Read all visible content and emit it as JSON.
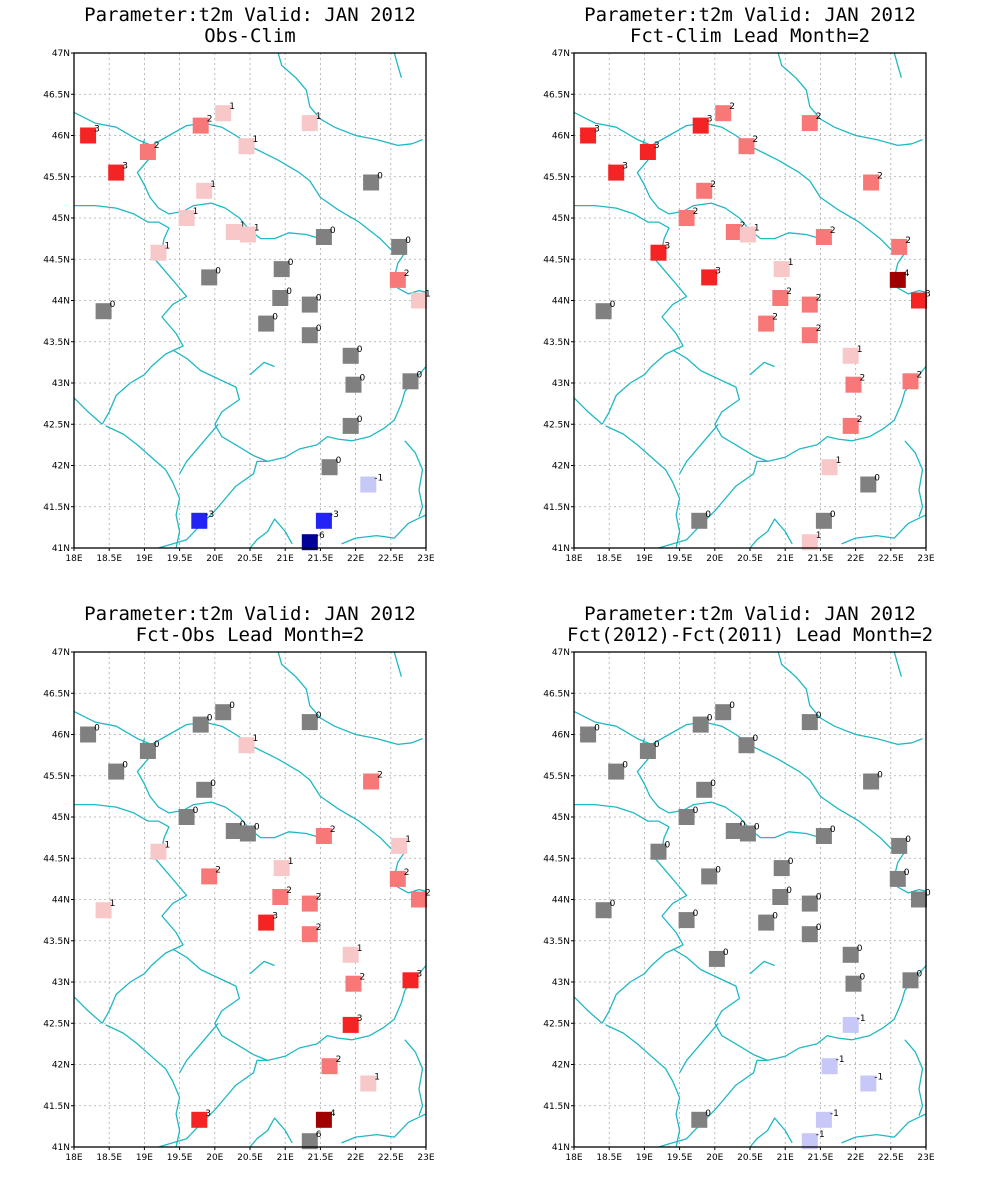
{
  "colors": {
    "-6": "#000096",
    "-3": "#2323f5",
    "-1": "#c8c8f8",
    "0": "#808080",
    "1": "#f8c8c8",
    "2": "#f87878",
    "3": "#f52323",
    "4": "#a00000",
    "coast": "#20b8c4",
    "grid": "#aaaaaa"
  },
  "chart_data": [
    {
      "type": "scatter",
      "title": "Parameter:t2m Valid: JAN 2012",
      "subtitle": "Obs-Clim",
      "xlim": [
        18,
        23
      ],
      "ylim": [
        41,
        47
      ],
      "xticks": [
        "18E",
        "18.5E",
        "19E",
        "19.5E",
        "20E",
        "20.5E",
        "21E",
        "21.5E",
        "22E",
        "22.5E",
        "23E"
      ],
      "yticks": [
        "41N",
        "41.5N",
        "42N",
        "42.5N",
        "43N",
        "43.5N",
        "44N",
        "44.5N",
        "45N",
        "45.5N",
        "46N",
        "46.5N",
        "47N"
      ],
      "grid": true,
      "points": [
        {
          "x": 18.2,
          "y": 46.0,
          "v": 3
        },
        {
          "x": 19.05,
          "y": 45.8,
          "v": 2
        },
        {
          "x": 18.6,
          "y": 45.55,
          "v": 3
        },
        {
          "x": 19.8,
          "y": 46.12,
          "v": 2
        },
        {
          "x": 20.12,
          "y": 46.27,
          "v": 1
        },
        {
          "x": 20.45,
          "y": 45.87,
          "v": 1
        },
        {
          "x": 21.35,
          "y": 46.15,
          "v": 1
        },
        {
          "x": 19.85,
          "y": 45.33,
          "v": 1
        },
        {
          "x": 19.6,
          "y": 45.0,
          "v": 1
        },
        {
          "x": 20.27,
          "y": 44.83,
          "v": 1
        },
        {
          "x": 20.47,
          "y": 44.8,
          "v": 1
        },
        {
          "x": 19.2,
          "y": 44.58,
          "v": 1
        },
        {
          "x": 19.92,
          "y": 44.28,
          "v": 0
        },
        {
          "x": 21.55,
          "y": 44.77,
          "v": 0
        },
        {
          "x": 22.22,
          "y": 45.43,
          "v": 0
        },
        {
          "x": 22.62,
          "y": 44.65,
          "v": 0
        },
        {
          "x": 22.6,
          "y": 44.25,
          "v": 2
        },
        {
          "x": 22.9,
          "y": 44.0,
          "v": 1
        },
        {
          "x": 20.95,
          "y": 44.38,
          "v": 0
        },
        {
          "x": 20.93,
          "y": 44.03,
          "v": 0
        },
        {
          "x": 21.35,
          "y": 43.95,
          "v": 0
        },
        {
          "x": 20.73,
          "y": 43.72,
          "v": 0
        },
        {
          "x": 21.35,
          "y": 43.58,
          "v": 0
        },
        {
          "x": 18.42,
          "y": 43.87,
          "v": 0
        },
        {
          "x": 21.93,
          "y": 43.33,
          "v": 0
        },
        {
          "x": 21.97,
          "y": 42.98,
          "v": 0
        },
        {
          "x": 22.78,
          "y": 43.02,
          "v": 0
        },
        {
          "x": 21.93,
          "y": 42.48,
          "v": 0
        },
        {
          "x": 21.63,
          "y": 41.98,
          "v": 0
        },
        {
          "x": 22.18,
          "y": 41.77,
          "v": -1
        },
        {
          "x": 19.78,
          "y": 41.33,
          "v": -3
        },
        {
          "x": 21.55,
          "y": 41.33,
          "v": -3
        },
        {
          "x": 21.35,
          "y": 41.07,
          "v": -6
        }
      ]
    },
    {
      "type": "scatter",
      "title": "Parameter:t2m Valid: JAN 2012",
      "subtitle": "Fct-Clim Lead Month=2",
      "xlim": [
        18,
        23
      ],
      "ylim": [
        41,
        47
      ],
      "xticks": [
        "18E",
        "18.5E",
        "19E",
        "19.5E",
        "20E",
        "20.5E",
        "21E",
        "21.5E",
        "22E",
        "22.5E",
        "23E"
      ],
      "yticks": [
        "41N",
        "41.5N",
        "42N",
        "42.5N",
        "43N",
        "43.5N",
        "44N",
        "44.5N",
        "45N",
        "45.5N",
        "46N",
        "46.5N",
        "47N"
      ],
      "grid": true,
      "points": [
        {
          "x": 18.2,
          "y": 46.0,
          "v": 3
        },
        {
          "x": 19.05,
          "y": 45.8,
          "v": 3
        },
        {
          "x": 18.6,
          "y": 45.55,
          "v": 3
        },
        {
          "x": 19.8,
          "y": 46.12,
          "v": 3
        },
        {
          "x": 20.12,
          "y": 46.27,
          "v": 2
        },
        {
          "x": 20.45,
          "y": 45.87,
          "v": 2
        },
        {
          "x": 21.35,
          "y": 46.15,
          "v": 2
        },
        {
          "x": 19.85,
          "y": 45.33,
          "v": 2
        },
        {
          "x": 19.6,
          "y": 45.0,
          "v": 2
        },
        {
          "x": 20.27,
          "y": 44.83,
          "v": 2
        },
        {
          "x": 20.47,
          "y": 44.8,
          "v": 1
        },
        {
          "x": 19.2,
          "y": 44.58,
          "v": 3
        },
        {
          "x": 19.92,
          "y": 44.28,
          "v": 3
        },
        {
          "x": 21.55,
          "y": 44.77,
          "v": 2
        },
        {
          "x": 22.22,
          "y": 45.43,
          "v": 2
        },
        {
          "x": 22.62,
          "y": 44.65,
          "v": 2
        },
        {
          "x": 22.6,
          "y": 44.25,
          "v": 4
        },
        {
          "x": 22.9,
          "y": 44.0,
          "v": 3
        },
        {
          "x": 20.95,
          "y": 44.38,
          "v": 1
        },
        {
          "x": 20.93,
          "y": 44.03,
          "v": 2
        },
        {
          "x": 21.35,
          "y": 43.95,
          "v": 2
        },
        {
          "x": 20.73,
          "y": 43.72,
          "v": 2
        },
        {
          "x": 21.35,
          "y": 43.58,
          "v": 2
        },
        {
          "x": 18.42,
          "y": 43.87,
          "v": 0
        },
        {
          "x": 21.93,
          "y": 43.33,
          "v": 1
        },
        {
          "x": 21.97,
          "y": 42.98,
          "v": 2
        },
        {
          "x": 22.78,
          "y": 43.02,
          "v": 2
        },
        {
          "x": 21.93,
          "y": 42.48,
          "v": 2
        },
        {
          "x": 21.63,
          "y": 41.98,
          "v": 1
        },
        {
          "x": 22.18,
          "y": 41.77,
          "v": 0
        },
        {
          "x": 19.78,
          "y": 41.33,
          "v": 0
        },
        {
          "x": 21.55,
          "y": 41.33,
          "v": 0
        },
        {
          "x": 21.35,
          "y": 41.07,
          "v": 1
        }
      ]
    },
    {
      "type": "scatter",
      "title": "Parameter:t2m Valid: JAN 2012",
      "subtitle": "Fct-Obs Lead Month=2",
      "xlim": [
        18,
        23
      ],
      "ylim": [
        41,
        47
      ],
      "xticks": [
        "18E",
        "18.5E",
        "19E",
        "19.5E",
        "20E",
        "20.5E",
        "21E",
        "21.5E",
        "22E",
        "22.5E",
        "23E"
      ],
      "yticks": [
        "41N",
        "41.5N",
        "42N",
        "42.5N",
        "43N",
        "43.5N",
        "44N",
        "44.5N",
        "45N",
        "45.5N",
        "46N",
        "46.5N",
        "47N"
      ],
      "grid": true,
      "points": [
        {
          "x": 18.2,
          "y": 46.0,
          "v": 0
        },
        {
          "x": 19.05,
          "y": 45.8,
          "v": 0
        },
        {
          "x": 18.6,
          "y": 45.55,
          "v": 0
        },
        {
          "x": 19.8,
          "y": 46.12,
          "v": 0
        },
        {
          "x": 20.12,
          "y": 46.27,
          "v": 0
        },
        {
          "x": 20.45,
          "y": 45.87,
          "v": 1
        },
        {
          "x": 21.35,
          "y": 46.15,
          "v": 0
        },
        {
          "x": 19.85,
          "y": 45.33,
          "v": 0
        },
        {
          "x": 19.6,
          "y": 45.0,
          "v": 0
        },
        {
          "x": 20.27,
          "y": 44.83,
          "v": 0
        },
        {
          "x": 20.47,
          "y": 44.8,
          "v": 0
        },
        {
          "x": 19.2,
          "y": 44.58,
          "v": 1
        },
        {
          "x": 19.92,
          "y": 44.28,
          "v": 2
        },
        {
          "x": 21.55,
          "y": 44.77,
          "v": 2
        },
        {
          "x": 22.22,
          "y": 45.43,
          "v": 2
        },
        {
          "x": 22.62,
          "y": 44.65,
          "v": 1
        },
        {
          "x": 22.6,
          "y": 44.25,
          "v": 2
        },
        {
          "x": 22.9,
          "y": 44.0,
          "v": 2
        },
        {
          "x": 20.95,
          "y": 44.38,
          "v": 1
        },
        {
          "x": 20.93,
          "y": 44.03,
          "v": 2
        },
        {
          "x": 21.35,
          "y": 43.95,
          "v": 2
        },
        {
          "x": 20.73,
          "y": 43.72,
          "v": 3
        },
        {
          "x": 21.35,
          "y": 43.58,
          "v": 2
        },
        {
          "x": 18.42,
          "y": 43.87,
          "v": 1
        },
        {
          "x": 21.93,
          "y": 43.33,
          "v": 1
        },
        {
          "x": 21.97,
          "y": 42.98,
          "v": 2
        },
        {
          "x": 22.78,
          "y": 43.02,
          "v": 3
        },
        {
          "x": 21.93,
          "y": 42.48,
          "v": 3
        },
        {
          "x": 21.63,
          "y": 41.98,
          "v": 2
        },
        {
          "x": 22.18,
          "y": 41.77,
          "v": 1
        },
        {
          "x": 19.78,
          "y": 41.33,
          "v": 3
        },
        {
          "x": 21.55,
          "y": 41.33,
          "v": 4
        },
        {
          "x": 21.35,
          "y": 41.07,
          "v": 6
        }
      ]
    },
    {
      "type": "scatter",
      "title": "Parameter:t2m Valid: JAN 2012",
      "subtitle": "Fct(2012)-Fct(2011) Lead Month=2",
      "xlim": [
        18,
        23
      ],
      "ylim": [
        41,
        47
      ],
      "xticks": [
        "18E",
        "18.5E",
        "19E",
        "19.5E",
        "20E",
        "20.5E",
        "21E",
        "21.5E",
        "22E",
        "22.5E",
        "23E"
      ],
      "yticks": [
        "41N",
        "41.5N",
        "42N",
        "42.5N",
        "43N",
        "43.5N",
        "44N",
        "44.5N",
        "45N",
        "45.5N",
        "46N",
        "46.5N",
        "47N"
      ],
      "grid": true,
      "points": [
        {
          "x": 18.2,
          "y": 46.0,
          "v": 0
        },
        {
          "x": 19.05,
          "y": 45.8,
          "v": 0
        },
        {
          "x": 18.6,
          "y": 45.55,
          "v": 0
        },
        {
          "x": 19.8,
          "y": 46.12,
          "v": 0
        },
        {
          "x": 20.12,
          "y": 46.27,
          "v": 0
        },
        {
          "x": 20.45,
          "y": 45.87,
          "v": 0
        },
        {
          "x": 21.35,
          "y": 46.15,
          "v": 0
        },
        {
          "x": 19.85,
          "y": 45.33,
          "v": 0
        },
        {
          "x": 19.6,
          "y": 45.0,
          "v": 0
        },
        {
          "x": 20.27,
          "y": 44.83,
          "v": 0
        },
        {
          "x": 20.47,
          "y": 44.8,
          "v": 0
        },
        {
          "x": 19.2,
          "y": 44.58,
          "v": 0
        },
        {
          "x": 19.92,
          "y": 44.28,
          "v": 0
        },
        {
          "x": 21.55,
          "y": 44.77,
          "v": 0
        },
        {
          "x": 22.22,
          "y": 45.43,
          "v": 0
        },
        {
          "x": 22.62,
          "y": 44.65,
          "v": 0
        },
        {
          "x": 22.6,
          "y": 44.25,
          "v": 0
        },
        {
          "x": 22.9,
          "y": 44.0,
          "v": 0
        },
        {
          "x": 20.95,
          "y": 44.38,
          "v": 0
        },
        {
          "x": 20.93,
          "y": 44.03,
          "v": 0
        },
        {
          "x": 21.35,
          "y": 43.95,
          "v": 0
        },
        {
          "x": 20.73,
          "y": 43.72,
          "v": 0
        },
        {
          "x": 21.35,
          "y": 43.58,
          "v": 0
        },
        {
          "x": 18.42,
          "y": 43.87,
          "v": 0
        },
        {
          "x": 19.6,
          "y": 43.75,
          "v": 0
        },
        {
          "x": 20.03,
          "y": 43.28,
          "v": 0
        },
        {
          "x": 21.93,
          "y": 43.33,
          "v": 0
        },
        {
          "x": 21.97,
          "y": 42.98,
          "v": 0
        },
        {
          "x": 22.78,
          "y": 43.02,
          "v": 0
        },
        {
          "x": 21.93,
          "y": 42.48,
          "v": -1
        },
        {
          "x": 21.63,
          "y": 41.98,
          "v": -1
        },
        {
          "x": 22.18,
          "y": 41.77,
          "v": -1
        },
        {
          "x": 19.78,
          "y": 41.33,
          "v": 0
        },
        {
          "x": 21.55,
          "y": 41.33,
          "v": -1
        },
        {
          "x": 21.35,
          "y": 41.07,
          "v": -1
        }
      ]
    }
  ]
}
